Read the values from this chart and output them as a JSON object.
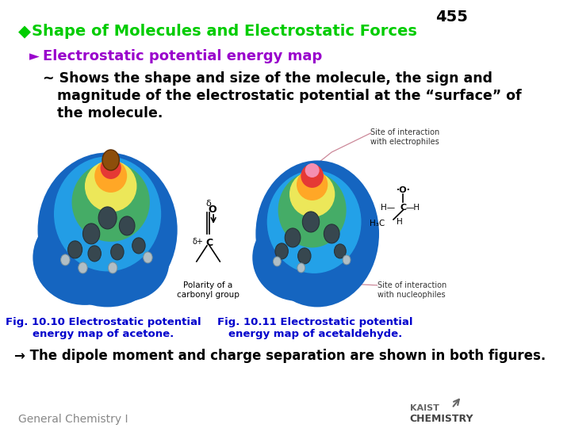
{
  "page_number": "455",
  "title": "Shape of Molecules and Electrostatic Forces",
  "title_color": "#00CC00",
  "title_bullet_color": "#00CC00",
  "section_header": "Electrostatic potential energy map",
  "section_header_color": "#9900CC",
  "section_bullet_color": "#9900CC",
  "body_line1": "~ Shows the shape and size of the molecule, the sign and",
  "body_line2": "   magnitude of the electrostatic potential at the “surface” of",
  "body_line3": "   the molecule.",
  "body_color": "#000000",
  "fig1_caption_line1": "Fig. 10.10 Electrostatic potential",
  "fig1_caption_line2": "energy map of acetone.",
  "fig2_caption_line1": "Fig. 10.11 Electrostatic potential",
  "fig2_caption_line2": "energy map of acetaldehyde.",
  "caption_color": "#0000CC",
  "arrow_line": "→ The dipole moment and charge separation are shown in both figures.",
  "arrow_line_color": "#000000",
  "footer_left": "General Chemistry I",
  "footer_left_color": "#888888",
  "background_color": "#FFFFFF",
  "page_number_color": "#000000",
  "title_fontsize": 14,
  "header_fontsize": 13,
  "body_fontsize": 12.5,
  "caption_fontsize": 9.5,
  "arrow_line_fontsize": 12,
  "footer_fontsize": 10,
  "label_fontsize": 7
}
